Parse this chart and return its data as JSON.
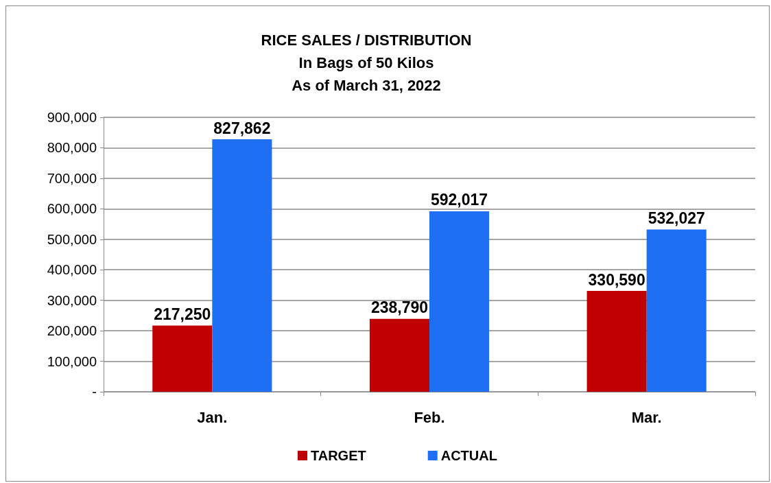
{
  "chart_data": {
    "type": "bar",
    "title": "RICE SALES / DISTRIBUTION\nIn Bags of 50 Kilos\nAs of March 31, 2022",
    "categories": [
      "Jan.",
      "Feb.",
      "Mar."
    ],
    "series": [
      {
        "name": "TARGET",
        "color": "#c00000",
        "values": [
          217250,
          238790,
          330590
        ],
        "value_labels": [
          "217,250",
          "238,790",
          "330,590"
        ]
      },
      {
        "name": "ACTUAL",
        "color": "#1f6ff5",
        "values": [
          827862,
          592017,
          532027
        ],
        "value_labels": [
          "827,862",
          "592,017",
          "532,027"
        ]
      }
    ],
    "ylim": [
      0,
      900000
    ],
    "yticks": [
      {
        "value": 0,
        "label": "-"
      },
      {
        "value": 100000,
        "label": "100,000"
      },
      {
        "value": 200000,
        "label": "200,000"
      },
      {
        "value": 300000,
        "label": "300,000"
      },
      {
        "value": 400000,
        "label": "400,000"
      },
      {
        "value": 500000,
        "label": "500,000"
      },
      {
        "value": 600000,
        "label": "600,000"
      },
      {
        "value": 700000,
        "label": "700,000"
      },
      {
        "value": 800000,
        "label": "800,000"
      },
      {
        "value": 900000,
        "label": "900,000"
      }
    ],
    "grid": "y",
    "legend": "bottom"
  }
}
